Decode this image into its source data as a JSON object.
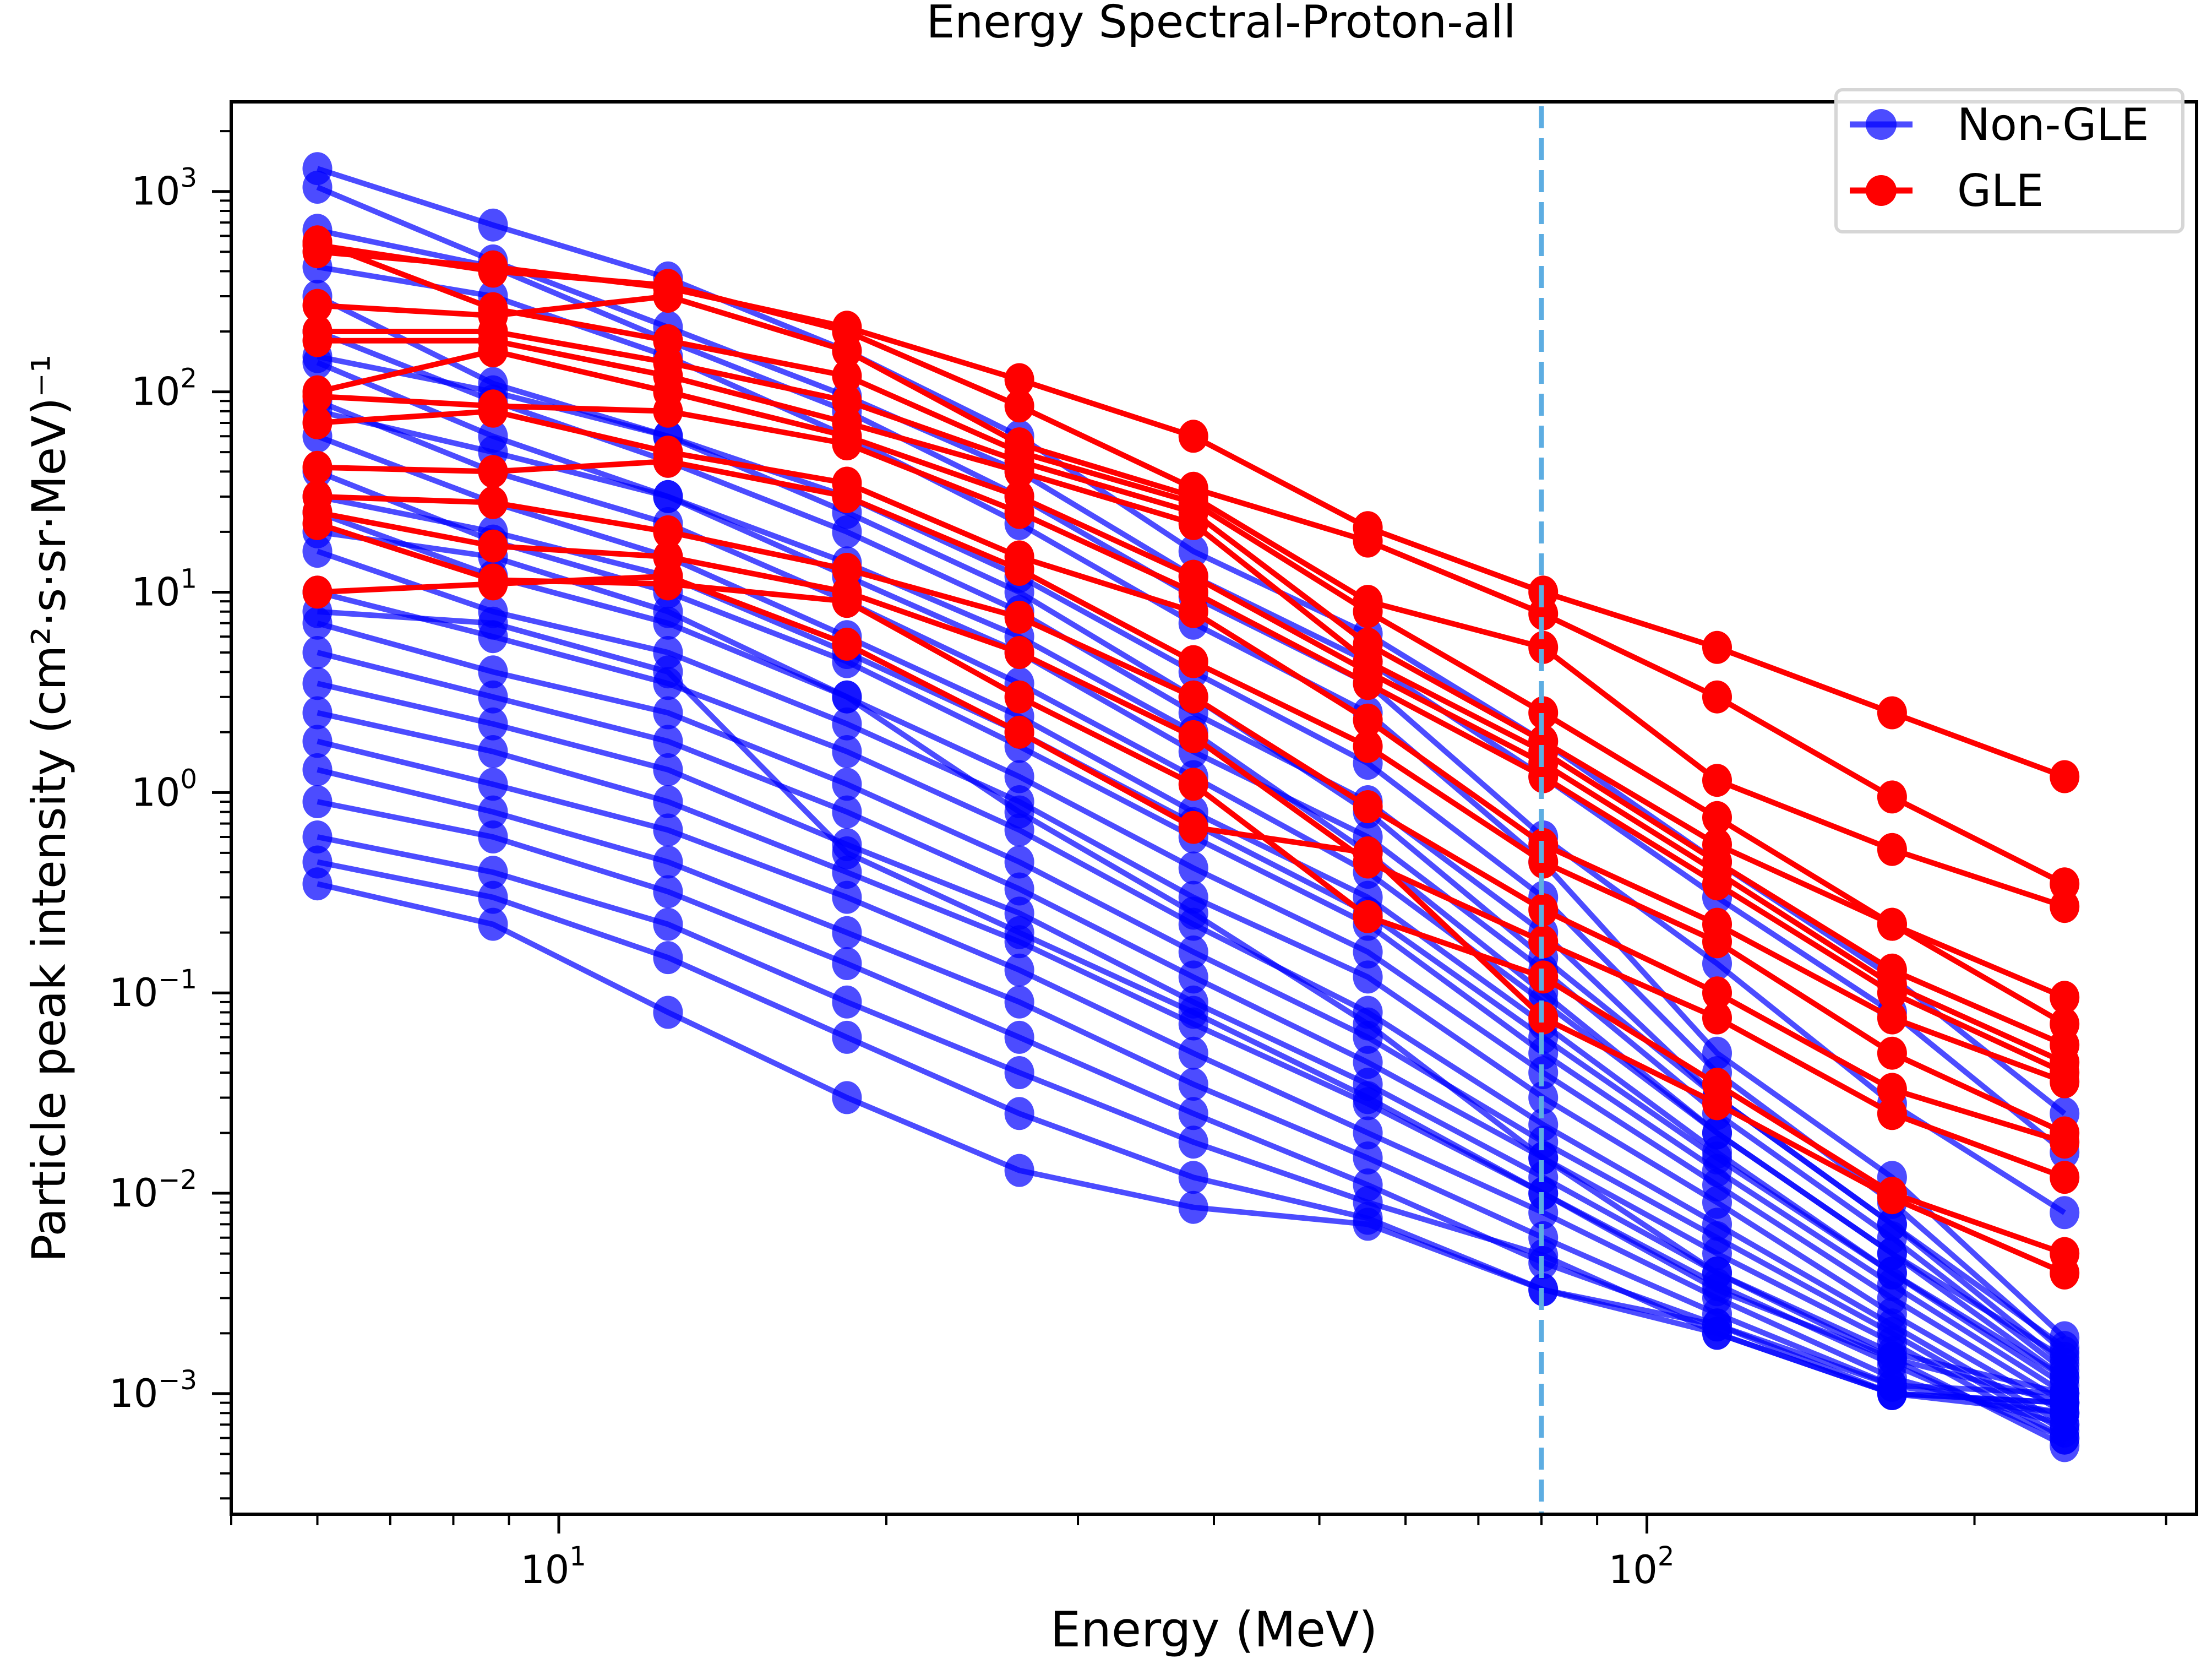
{
  "chart_data": {
    "type": "line",
    "title": "Energy Spectral-Proton-all",
    "xlabel": "Energy (MeV)",
    "ylabel": "Particle peak intensity (cm²·s·sr·MeV)⁻¹",
    "xscale": "log",
    "yscale": "log",
    "xlim": [
      5.0,
      320
    ],
    "ylim": [
      0.00025,
      2800
    ],
    "x_ticks": [
      {
        "value": 10,
        "label_base": "10",
        "label_exp": "1"
      },
      {
        "value": 100,
        "label_base": "10",
        "label_exp": "2"
      }
    ],
    "y_ticks": [
      {
        "value": 0.001,
        "label_base": "10",
        "label_exp": "−3"
      },
      {
        "value": 0.01,
        "label_base": "10",
        "label_exp": "−2"
      },
      {
        "value": 0.1,
        "label_base": "10",
        "label_exp": "−1"
      },
      {
        "value": 1,
        "label_base": "10",
        "label_exp": "0"
      },
      {
        "value": 10,
        "label_base": "10",
        "label_exp": "1"
      },
      {
        "value": 100,
        "label_base": "10",
        "label_exp": "2"
      },
      {
        "value": 1000,
        "label_base": "10",
        "label_exp": "3"
      }
    ],
    "grid": false,
    "legend": {
      "position": "top-right",
      "entries": [
        {
          "label": "Non-GLE",
          "color": "#0000ff",
          "alpha": 0.7
        },
        {
          "label": "GLE",
          "color": "#ff0000",
          "alpha": 1.0
        }
      ]
    },
    "vline": {
      "x": 80,
      "color": "#5dade2",
      "style": "dashed"
    },
    "energies": [
      6.0,
      8.7,
      12.6,
      18.4,
      26.5,
      38.3,
      55.4,
      80.3,
      116,
      168,
      242
    ],
    "series": [
      {
        "name": "Non-GLE",
        "color": "#0000ff",
        "alpha": 0.7,
        "curves": [
          [
            1300,
            680,
            370,
            160,
            60,
            16,
            6.2,
            1.8,
            0.45,
            0.12,
            0.025
          ],
          [
            1050,
            450,
            210,
            95,
            40,
            12,
            4.5,
            1.2,
            0.3,
            0.08,
            0.016
          ],
          [
            640,
            420,
            180,
            80,
            30,
            9.5,
            3.5,
            0.6,
            0.14,
            0.028,
            0.008
          ],
          [
            420,
            300,
            150,
            60,
            22,
            7.0,
            2.5,
            0.45,
            0.05,
            0.012,
            0.0019
          ],
          [
            300,
            110,
            60,
            30,
            12,
            4.0,
            1.4,
            0.3,
            0.04,
            0.009,
            0.0016
          ],
          [
            200,
            90,
            45,
            20,
            8.0,
            2.5,
            0.9,
            0.2,
            0.03,
            0.007,
            0.0014
          ],
          [
            140,
            60,
            30,
            12,
            5.0,
            1.6,
            0.6,
            0.13,
            0.025,
            0.006,
            0.0013
          ],
          [
            90,
            40,
            22,
            9.0,
            3.5,
            1.2,
            0.4,
            0.09,
            0.02,
            0.005,
            0.0012
          ],
          [
            60,
            28,
            15,
            6.0,
            2.4,
            0.8,
            0.3,
            0.07,
            0.016,
            0.004,
            0.0011
          ],
          [
            40,
            18,
            10,
            4.5,
            1.7,
            0.6,
            0.22,
            0.05,
            0.013,
            0.0035,
            0.001
          ],
          [
            25,
            12,
            7.0,
            3.0,
            1.2,
            0.42,
            0.16,
            0.04,
            0.011,
            0.003,
            0.0009
          ],
          [
            16,
            8.0,
            5.0,
            2.2,
            0.9,
            0.3,
            0.12,
            0.03,
            0.009,
            0.0025,
            0.0008
          ],
          [
            10,
            6.0,
            3.5,
            1.6,
            0.65,
            0.22,
            0.08,
            0.022,
            0.007,
            0.0022,
            0.0007
          ],
          [
            7.0,
            4.0,
            2.5,
            1.1,
            0.45,
            0.16,
            0.06,
            0.018,
            0.006,
            0.002,
            0.00065
          ],
          [
            5.0,
            3.0,
            1.8,
            0.8,
            0.33,
            0.12,
            0.045,
            0.015,
            0.005,
            0.0018,
            0.0006
          ],
          [
            3.5,
            2.2,
            1.3,
            0.55,
            0.25,
            0.09,
            0.035,
            0.012,
            0.004,
            0.0015,
            0.00055
          ],
          [
            2.5,
            1.6,
            0.9,
            0.4,
            0.18,
            0.07,
            0.028,
            0.01,
            0.0035,
            0.0014,
            0.0006
          ],
          [
            1.8,
            1.1,
            0.65,
            0.3,
            0.13,
            0.05,
            0.02,
            0.008,
            0.003,
            0.0012,
            0.0007
          ],
          [
            1.3,
            0.8,
            0.45,
            0.2,
            0.09,
            0.035,
            0.015,
            0.006,
            0.0025,
            0.0011,
            0.0008
          ],
          [
            0.9,
            0.6,
            0.32,
            0.14,
            0.06,
            0.025,
            0.011,
            0.0045,
            0.0022,
            0.001,
            0.0009
          ],
          [
            0.6,
            0.4,
            0.22,
            0.09,
            0.04,
            0.018,
            0.009,
            0.0049,
            0.002,
            0.001,
            0.0009
          ],
          [
            0.45,
            0.3,
            0.15,
            0.06,
            0.025,
            0.012,
            0.0075,
            0.0033,
            0.0022,
            0.0011,
            0.001
          ],
          [
            0.35,
            0.22,
            0.08,
            0.03,
            0.013,
            0.0085,
            0.007,
            0.0033,
            0.002,
            0.001,
            0.0008
          ],
          [
            8.0,
            7.0,
            4.0,
            0.5,
            0.2,
            0.08,
            0.03,
            0.01,
            0.0033,
            0.0015,
            0.0009
          ],
          [
            20,
            15,
            8.0,
            3.0,
            0.8,
            0.25,
            0.07,
            0.015,
            0.004,
            0.0016,
            0.001
          ],
          [
            80,
            50,
            30,
            14,
            6.0,
            2.0,
            0.5,
            0.1,
            0.02,
            0.005,
            0.0015
          ],
          [
            150,
            100,
            60,
            25,
            10,
            3.0,
            0.8,
            0.15,
            0.03,
            0.007,
            0.0017
          ],
          [
            30,
            20,
            12,
            5.0,
            2.0,
            0.7,
            0.25,
            0.06,
            0.015,
            0.004,
            0.0012
          ]
        ]
      },
      {
        "name": "GLE",
        "color": "#ff0000",
        "alpha": 1.0,
        "curves": [
          [
            500,
            420,
            330,
            210,
            115,
            60,
            21,
            10,
            5.3,
            2.5,
            1.2
          ],
          [
            540,
            400,
            340,
            200,
            85,
            33,
            18,
            7.8,
            3.0,
            0.95,
            0.35
          ],
          [
            270,
            240,
            300,
            160,
            55,
            30,
            9.0,
            5.3,
            1.15,
            0.52,
            0.27
          ],
          [
            560,
            260,
            180,
            120,
            50,
            28,
            8.0,
            2.5,
            0.75,
            0.22,
            0.095
          ],
          [
            200,
            200,
            140,
            90,
            45,
            25,
            5.5,
            1.8,
            0.55,
            0.22,
            0.07
          ],
          [
            180,
            180,
            120,
            70,
            40,
            22,
            4.5,
            1.6,
            0.45,
            0.13,
            0.055
          ],
          [
            100,
            160,
            100,
            60,
            30,
            12,
            4.0,
            1.4,
            0.4,
            0.11,
            0.045
          ],
          [
            95,
            85,
            80,
            55,
            25,
            10,
            3.5,
            1.2,
            0.35,
            0.1,
            0.04
          ],
          [
            70,
            80,
            50,
            35,
            15,
            8.0,
            2.3,
            0.55,
            0.22,
            0.075,
            0.036
          ],
          [
            42,
            40,
            45,
            30,
            13,
            4.5,
            1.7,
            0.45,
            0.18,
            0.05,
            0.02
          ],
          [
            30,
            28,
            20,
            13,
            7.5,
            3.0,
            0.85,
            0.26,
            0.1,
            0.033,
            0.018
          ],
          [
            25,
            17,
            15,
            10,
            5.0,
            1.9,
            0.45,
            0.18,
            0.075,
            0.025,
            0.012
          ],
          [
            22,
            11.5,
            11,
            9.0,
            3.0,
            1.1,
            0.24,
            0.12,
            0.035,
            0.01,
            0.005
          ],
          [
            10,
            11,
            12,
            5.5,
            2.0,
            0.67,
            0.5,
            0.075,
            0.028,
            0.0095,
            0.004
          ]
        ]
      }
    ]
  }
}
